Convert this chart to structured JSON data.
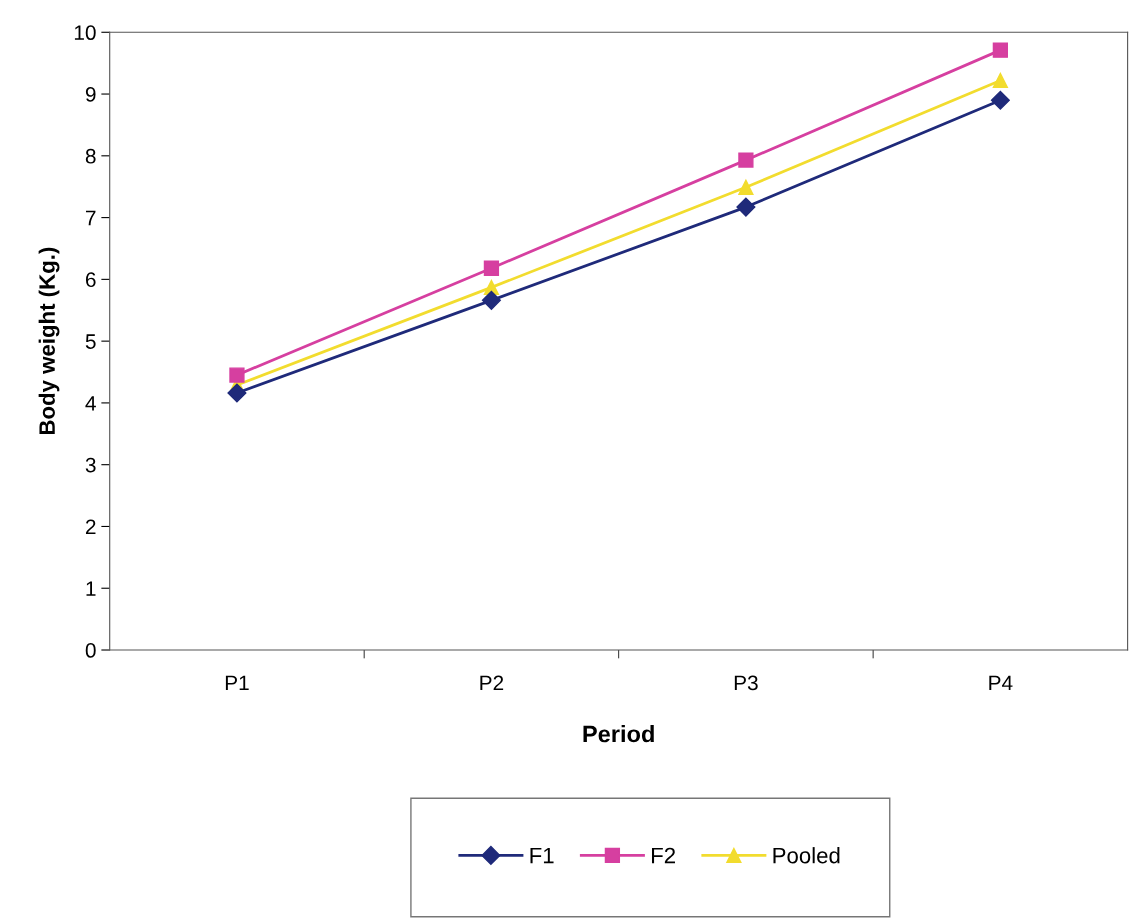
{
  "chart_data": {
    "type": "line",
    "xlabel": "Period",
    "ylabel": "Body weight (Kg.)",
    "categories": [
      "P1",
      "P2",
      "P3",
      "P4"
    ],
    "series": [
      {
        "name": "F1",
        "color": "#1f2a7a",
        "marker": "diamond",
        "values": [
          4.16,
          5.66,
          7.17,
          8.9
        ]
      },
      {
        "name": "F2",
        "color": "#d63fa0",
        "marker": "square",
        "values": [
          4.45,
          6.18,
          7.93,
          9.71
        ]
      },
      {
        "name": "Pooled",
        "color": "#f2dc2e",
        "marker": "triangle",
        "values": [
          4.29,
          5.87,
          7.49,
          9.22
        ]
      }
    ],
    "ylim": [
      0,
      10
    ],
    "yticks": [
      0,
      1,
      2,
      3,
      4,
      5,
      6,
      7,
      8,
      9,
      10
    ],
    "grid": false,
    "legend": "bottom"
  }
}
